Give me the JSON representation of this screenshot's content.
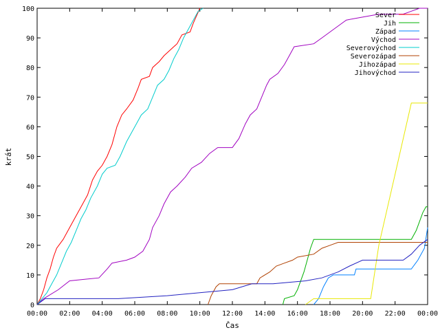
{
  "chart_data": {
    "type": "line",
    "title": "",
    "xlabel": "Čas",
    "ylabel": "krát",
    "xlim": [
      0,
      24
    ],
    "ylim": [
      0,
      100
    ],
    "x_ticks": [
      "00:00",
      "02:00",
      "04:00",
      "06:00",
      "08:00",
      "10:00",
      "12:00",
      "14:00",
      "16:00",
      "18:00",
      "20:00",
      "22:00",
      "00:00"
    ],
    "y_ticks": [
      0,
      10,
      20,
      30,
      40,
      50,
      60,
      70,
      80,
      90,
      100
    ],
    "grid": false,
    "legend": "top-right",
    "series": [
      {
        "name": "Sever",
        "color": "#ff0000",
        "points": [
          [
            0,
            0
          ],
          [
            0.2,
            2
          ],
          [
            0.4,
            5
          ],
          [
            0.6,
            9
          ],
          [
            0.8,
            12
          ],
          [
            1.0,
            16
          ],
          [
            1.2,
            19
          ],
          [
            1.6,
            22
          ],
          [
            1.8,
            24
          ],
          [
            2.1,
            27
          ],
          [
            2.5,
            31
          ],
          [
            2.8,
            34
          ],
          [
            3.1,
            37
          ],
          [
            3.4,
            42
          ],
          [
            3.7,
            45
          ],
          [
            4.0,
            47
          ],
          [
            4.3,
            50
          ],
          [
            4.6,
            54
          ],
          [
            4.9,
            60
          ],
          [
            5.2,
            64
          ],
          [
            5.5,
            66
          ],
          [
            5.9,
            69
          ],
          [
            6.2,
            73
          ],
          [
            6.4,
            76
          ],
          [
            6.9,
            77
          ],
          [
            7.1,
            80
          ],
          [
            7.5,
            82
          ],
          [
            7.8,
            84
          ],
          [
            8.2,
            86
          ],
          [
            8.6,
            88
          ],
          [
            8.9,
            91
          ],
          [
            9.4,
            92
          ],
          [
            9.6,
            95
          ],
          [
            10.0,
            100
          ]
        ]
      },
      {
        "name": "Jih",
        "color": "#00b000",
        "points": [
          [
            15.1,
            0
          ],
          [
            15.2,
            2
          ],
          [
            15.8,
            3
          ],
          [
            16.0,
            5
          ],
          [
            16.4,
            11
          ],
          [
            16.6,
            15
          ],
          [
            16.8,
            19
          ],
          [
            17.0,
            22
          ],
          [
            23.0,
            22
          ],
          [
            23.3,
            25
          ],
          [
            23.5,
            28
          ],
          [
            23.7,
            31
          ],
          [
            23.9,
            33
          ],
          [
            24,
            33
          ]
        ]
      },
      {
        "name": "Západ",
        "color": "#0080ff",
        "points": [
          [
            17.0,
            0
          ],
          [
            17.3,
            2
          ],
          [
            17.6,
            6
          ],
          [
            17.9,
            9
          ],
          [
            18.2,
            10
          ],
          [
            19.5,
            10
          ],
          [
            19.6,
            12
          ],
          [
            23.0,
            12
          ],
          [
            23.4,
            15
          ],
          [
            23.8,
            19
          ],
          [
            24,
            26
          ]
        ]
      },
      {
        "name": "Východ",
        "color": "#a000c0",
        "points": [
          [
            0,
            0
          ],
          [
            0.4,
            2
          ],
          [
            1.3,
            5
          ],
          [
            2.0,
            8
          ],
          [
            3.8,
            9
          ],
          [
            4.3,
            12
          ],
          [
            4.6,
            14
          ],
          [
            5.5,
            15
          ],
          [
            6.0,
            16
          ],
          [
            6.5,
            18
          ],
          [
            6.9,
            22
          ],
          [
            7.1,
            26
          ],
          [
            7.5,
            30
          ],
          [
            7.8,
            34
          ],
          [
            8.2,
            38
          ],
          [
            8.6,
            40
          ],
          [
            9.1,
            43
          ],
          [
            9.5,
            46
          ],
          [
            10.1,
            48
          ],
          [
            10.6,
            51
          ],
          [
            11.1,
            53
          ],
          [
            12.0,
            53
          ],
          [
            12.4,
            56
          ],
          [
            12.8,
            61
          ],
          [
            13.1,
            64
          ],
          [
            13.5,
            66
          ],
          [
            13.8,
            70
          ],
          [
            14.1,
            74
          ],
          [
            14.3,
            76
          ],
          [
            14.8,
            78
          ],
          [
            15.2,
            81
          ],
          [
            15.5,
            84
          ],
          [
            15.8,
            87
          ],
          [
            17.0,
            88
          ],
          [
            17.5,
            90
          ],
          [
            18.0,
            92
          ],
          [
            18.5,
            94
          ],
          [
            19.0,
            96
          ],
          [
            20.0,
            97
          ],
          [
            21.0,
            98
          ],
          [
            22.5,
            98
          ],
          [
            23.0,
            99
          ],
          [
            23.5,
            100
          ],
          [
            24,
            100
          ]
        ]
      },
      {
        "name": "Severovýchod",
        "color": "#00cccc",
        "points": [
          [
            0,
            0
          ],
          [
            0.3,
            2
          ],
          [
            0.6,
            4
          ],
          [
            0.9,
            7
          ],
          [
            1.2,
            10
          ],
          [
            1.5,
            14
          ],
          [
            1.8,
            18
          ],
          [
            2.1,
            21
          ],
          [
            2.4,
            25
          ],
          [
            2.7,
            29
          ],
          [
            3.0,
            32
          ],
          [
            3.3,
            36
          ],
          [
            3.7,
            40
          ],
          [
            4.0,
            44
          ],
          [
            4.3,
            46
          ],
          [
            4.8,
            47
          ],
          [
            5.1,
            50
          ],
          [
            5.5,
            55
          ],
          [
            5.8,
            58
          ],
          [
            6.1,
            61
          ],
          [
            6.4,
            64
          ],
          [
            6.8,
            66
          ],
          [
            7.1,
            70
          ],
          [
            7.4,
            74
          ],
          [
            7.8,
            76
          ],
          [
            8.1,
            79
          ],
          [
            8.4,
            83
          ],
          [
            8.7,
            86
          ],
          [
            9.0,
            90
          ],
          [
            9.3,
            93
          ],
          [
            9.6,
            96
          ],
          [
            9.9,
            99
          ],
          [
            10.2,
            100
          ]
        ]
      },
      {
        "name": "Severozápad",
        "color": "#b04000",
        "points": [
          [
            10.5,
            0
          ],
          [
            10.7,
            3
          ],
          [
            11.0,
            6
          ],
          [
            11.2,
            7
          ],
          [
            13.5,
            7
          ],
          [
            13.7,
            9
          ],
          [
            14.3,
            11
          ],
          [
            14.7,
            13
          ],
          [
            15.2,
            14
          ],
          [
            15.7,
            15
          ],
          [
            16.0,
            16
          ],
          [
            17.0,
            17
          ],
          [
            17.5,
            19
          ],
          [
            18.0,
            20
          ],
          [
            18.5,
            21
          ],
          [
            24,
            21
          ]
        ]
      },
      {
        "name": "Jihozápad",
        "color": "#e8e800",
        "points": [
          [
            16.5,
            0
          ],
          [
            17.0,
            2
          ],
          [
            20.5,
            2
          ],
          [
            21.0,
            20
          ],
          [
            22.0,
            44
          ],
          [
            23.0,
            68
          ],
          [
            24,
            68
          ]
        ]
      },
      {
        "name": "Jihovýchod",
        "color": "#2020c0",
        "points": [
          [
            0,
            0
          ],
          [
            0.5,
            2
          ],
          [
            4.5,
            2
          ],
          [
            5.0,
            2
          ],
          [
            8.0,
            3
          ],
          [
            12.0,
            5
          ],
          [
            13.2,
            7
          ],
          [
            14.5,
            7
          ],
          [
            16.5,
            8
          ],
          [
            17.5,
            9
          ],
          [
            18.5,
            11
          ],
          [
            19.2,
            13
          ],
          [
            20.0,
            15
          ],
          [
            22.5,
            15
          ],
          [
            23.0,
            17
          ],
          [
            23.5,
            20
          ],
          [
            24,
            22
          ]
        ]
      }
    ]
  }
}
